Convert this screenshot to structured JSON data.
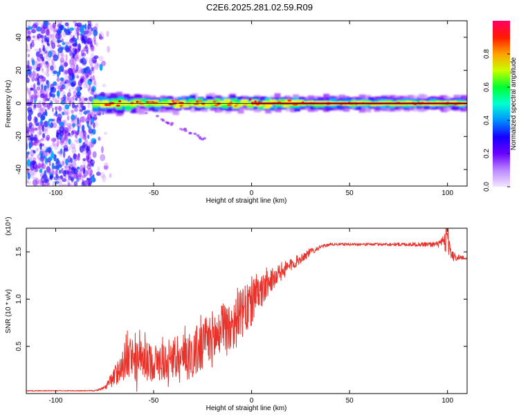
{
  "title": "C2E6.2025.281.02.59.R09",
  "chart_data": [
    {
      "type": "heatmap",
      "xlabel": "Height of straight line (km)",
      "ylabel": "Frequency (Hz)",
      "xlim": [
        -115,
        110
      ],
      "ylim": [
        -50,
        50
      ],
      "xticks": [
        -100,
        -50,
        0,
        50,
        100
      ],
      "xtick_labels": [
        "-100",
        "-50",
        "0",
        "50",
        "100"
      ],
      "yticks": [
        -40,
        -20,
        0,
        20,
        40
      ],
      "ytick_labels": [
        "-40",
        "-20",
        "0",
        "20",
        "40"
      ],
      "colorbar": {
        "label": "Normalized spectral amplitude",
        "range": [
          0,
          1
        ],
        "ticks": [
          0.0,
          0.2,
          0.4,
          0.6,
          0.8
        ],
        "tick_labels": [
          "0.0",
          "0.2",
          "0.4",
          "0.6",
          "0.8"
        ],
        "colors": [
          "#f2e6ff",
          "#8800ff",
          "#2200ff",
          "#00c0ff",
          "#00ff60",
          "#b0ff00",
          "#ffff00",
          "#ff8000",
          "#ff0000",
          "#ff0060"
        ]
      },
      "noise_region_x": [
        -115,
        -80
      ],
      "carrier_band": {
        "x_range": [
          -80,
          110
        ],
        "center_frequency_hz": 0,
        "peak_amplitude": 1.0,
        "secondary_streak_x": [
          -55,
          -23
        ],
        "secondary_streak_freq_hz": [
          -5,
          -22
        ]
      }
    },
    {
      "type": "line",
      "xlabel": "Height of straight line (km)",
      "ylabel": "SNR (10 * v/v)",
      "yunit_label": "(x10⁴)",
      "xlim": [
        -115,
        110
      ],
      "ylim": [
        0,
        1.75
      ],
      "xticks": [
        -100,
        -50,
        0,
        50,
        100
      ],
      "xtick_labels": [
        "-100",
        "-50",
        "0",
        "50",
        "100"
      ],
      "yticks": [
        0.5,
        1.0,
        1.5
      ],
      "ytick_labels": [
        "0.5",
        "1.0",
        "1.5"
      ],
      "color": "#e8322a",
      "series_envelope": {
        "x": [
          -115,
          -80,
          -75,
          -70,
          -65,
          -60,
          -50,
          -40,
          -30,
          -20,
          -10,
          0,
          10,
          20,
          30,
          35,
          40,
          60,
          80,
          95,
          100,
          103,
          110
        ],
        "mean": [
          0.03,
          0.03,
          0.06,
          0.18,
          0.35,
          0.35,
          0.33,
          0.36,
          0.42,
          0.58,
          0.72,
          0.95,
          1.2,
          1.36,
          1.5,
          1.55,
          1.58,
          1.58,
          1.58,
          1.58,
          1.6,
          1.45,
          1.43
        ],
        "noise": [
          0.005,
          0.005,
          0.02,
          0.1,
          0.2,
          0.22,
          0.2,
          0.22,
          0.28,
          0.3,
          0.3,
          0.25,
          0.12,
          0.07,
          0.04,
          0.02,
          0.015,
          0.015,
          0.02,
          0.03,
          0.12,
          0.05,
          0.01
        ]
      }
    }
  ]
}
